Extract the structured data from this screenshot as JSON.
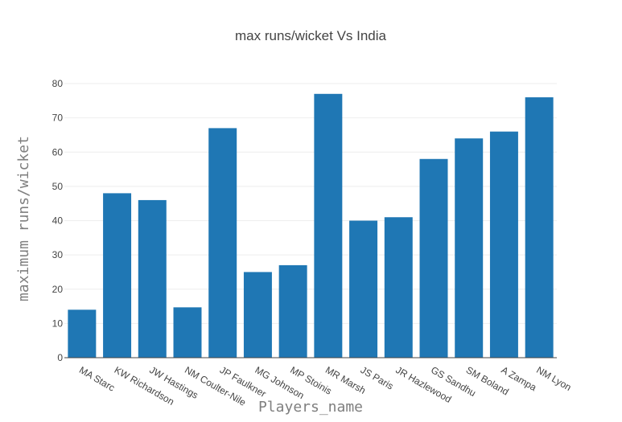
{
  "chart_data": {
    "type": "bar",
    "title": "max runs/wicket Vs India",
    "xlabel": "Players_name",
    "ylabel": "maximum runs/wicket",
    "categories": [
      "MA Starc",
      "KW Richardson",
      "JW Hastings",
      "NM Coulter-Nile",
      "JP Faulkner",
      "MG Johnson",
      "MP Stoinis",
      "MR Marsh",
      "JS Paris",
      "JR Hazlewood",
      "GS Sandhu",
      "SM Boland",
      "A Zampa",
      "NM Lyon"
    ],
    "values": [
      14,
      48,
      46,
      14.7,
      67,
      25,
      27,
      77,
      40,
      41,
      58,
      64,
      66,
      76
    ],
    "ylim": [
      0,
      80
    ],
    "yticks": [
      0,
      10,
      20,
      30,
      40,
      50,
      60,
      70,
      80
    ],
    "grid": true,
    "bar_color": "#1f77b4"
  }
}
